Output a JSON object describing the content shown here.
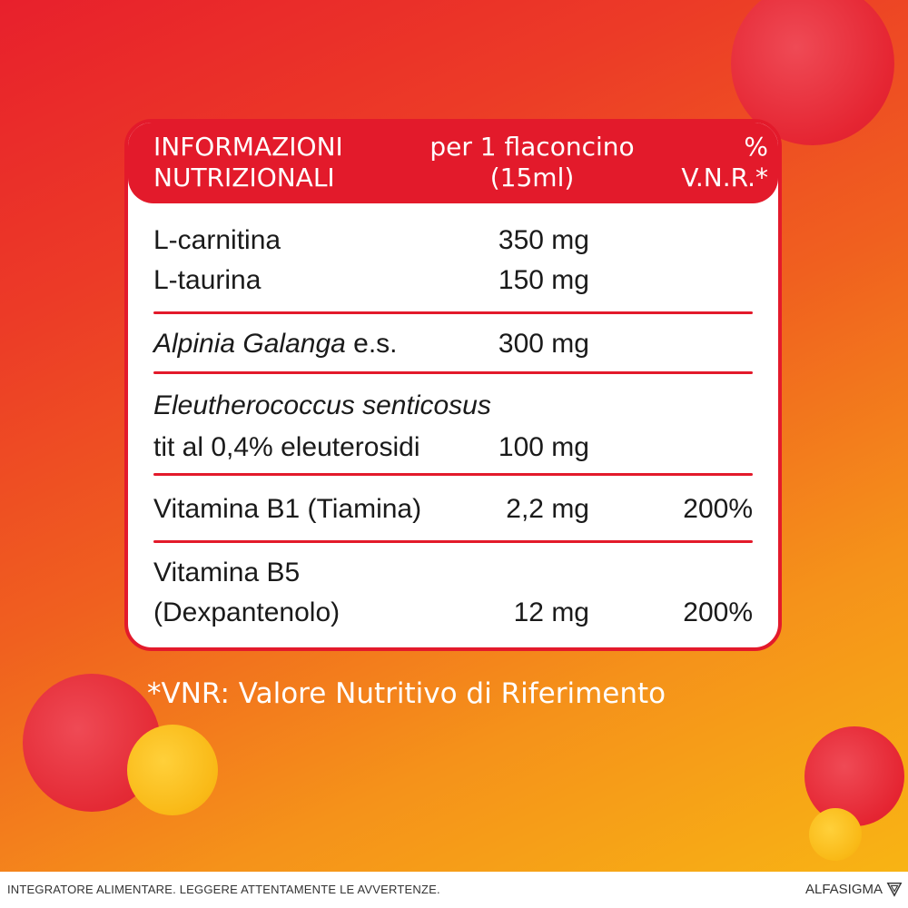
{
  "colors": {
    "brand_red": "#e31a2b",
    "bubble_red": "#e52532",
    "bubble_yellow": "#f9b916",
    "bg_start": "#e8202c",
    "bg_end": "#f8b414"
  },
  "table": {
    "header": {
      "col1_line1": "INFORMAZIONI",
      "col1_line2": "NUTRIZIONALI",
      "col2_line1": "per 1 flaconcino",
      "col2_line2": "(15ml)",
      "col3": "% V.N.R.*"
    },
    "rows": [
      {
        "name": "L-carnitina",
        "amount": "350 mg",
        "vnr": ""
      },
      {
        "name": "L-taurina",
        "amount": "150 mg",
        "vnr": ""
      },
      {
        "name_italic": "Alpinia Galanga",
        "name_suffix": " e.s.",
        "amount": "300 mg",
        "vnr": ""
      },
      {
        "name_italic": "Eleutherococcus senticosus",
        "name_line2": "tit al 0,4% eleuterosidi",
        "amount": "100 mg",
        "vnr": ""
      },
      {
        "name": "Vitamina B1 (Tiamina)",
        "amount": "2,2 mg",
        "vnr": "200%"
      },
      {
        "name": "Vitamina B5",
        "name_line2": "(Dexpantenolo)",
        "amount": "12 mg",
        "vnr": "200%"
      }
    ]
  },
  "footnote": "*VNR: Valore Nutritivo di Riferimento",
  "footer": {
    "disclaimer": "INTEGRATORE ALIMENTARE. LEGGERE ATTENTAMENTE LE AVVERTENZE.",
    "brand": "ALFASIGMA",
    "brand_icon": "alfasigma-logo-icon"
  }
}
